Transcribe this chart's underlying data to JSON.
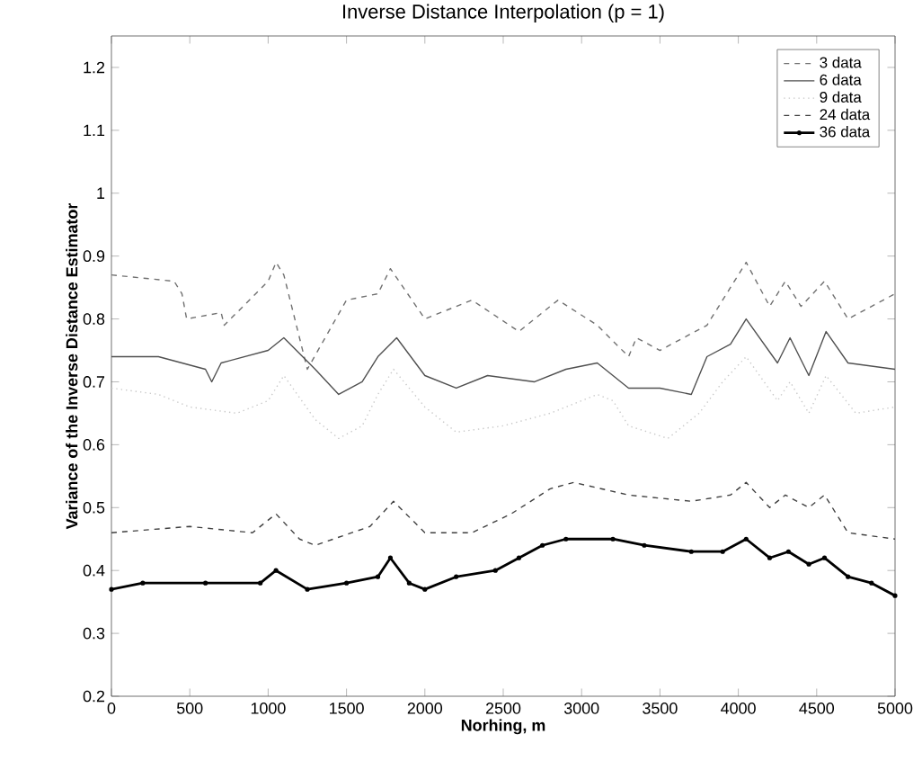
{
  "chart_data": {
    "type": "line",
    "title": "Inverse Distance Interpolation (p = 1)",
    "xlabel": "Norhing, m",
    "ylabel": "Variance of the Inverse Distance Estimator",
    "xlim": [
      0,
      5000
    ],
    "ylim": [
      0.2,
      1.25
    ],
    "xticks": [
      0,
      500,
      1000,
      1500,
      2000,
      2500,
      3000,
      3500,
      4000,
      4500,
      5000
    ],
    "yticks": [
      0.2,
      0.3,
      0.4,
      0.5,
      0.6,
      0.7,
      0.8,
      0.9,
      1,
      1.1,
      1.2
    ],
    "grid": false,
    "legend": "top right",
    "series": [
      {
        "name": "3 data",
        "color": "#707070",
        "line_style": "dashed",
        "marker": "none",
        "x": [
          0,
          400,
          450,
          480,
          700,
          720,
          760,
          1000,
          1050,
          1100,
          1250,
          1500,
          1700,
          1780,
          2000,
          2300,
          2600,
          2850,
          3100,
          3300,
          3350,
          3500,
          3800,
          4050,
          4200,
          4300,
          4400,
          4550,
          4700,
          5000
        ],
        "values": [
          0.87,
          0.86,
          0.84,
          0.8,
          0.81,
          0.79,
          0.8,
          0.86,
          0.89,
          0.87,
          0.72,
          0.83,
          0.84,
          0.88,
          0.8,
          0.83,
          0.78,
          0.83,
          0.79,
          0.74,
          0.77,
          0.75,
          0.79,
          0.89,
          0.82,
          0.86,
          0.82,
          0.86,
          0.8,
          0.84
        ]
      },
      {
        "name": "6 data",
        "color": "#505050",
        "line_style": "solid",
        "marker": "none",
        "x": [
          0,
          300,
          600,
          640,
          700,
          1000,
          1100,
          1300,
          1450,
          1600,
          1700,
          1820,
          2000,
          2200,
          2400,
          2700,
          2900,
          3100,
          3300,
          3500,
          3700,
          3800,
          3950,
          4050,
          4250,
          4330,
          4450,
          4560,
          4700,
          5000
        ],
        "values": [
          0.74,
          0.74,
          0.72,
          0.7,
          0.73,
          0.75,
          0.77,
          0.72,
          0.68,
          0.7,
          0.74,
          0.77,
          0.71,
          0.69,
          0.71,
          0.7,
          0.72,
          0.73,
          0.69,
          0.69,
          0.68,
          0.74,
          0.76,
          0.8,
          0.73,
          0.77,
          0.71,
          0.78,
          0.73,
          0.72
        ]
      },
      {
        "name": "9 data",
        "color": "#c8c8c8",
        "line_style": "dotted",
        "marker": "none",
        "x": [
          0,
          300,
          500,
          800,
          1000,
          1100,
          1300,
          1450,
          1600,
          1700,
          1800,
          2000,
          2200,
          2500,
          2800,
          3100,
          3200,
          3300,
          3550,
          3750,
          3900,
          4050,
          4250,
          4330,
          4450,
          4560,
          4750,
          5000
        ],
        "values": [
          0.69,
          0.68,
          0.66,
          0.65,
          0.67,
          0.71,
          0.64,
          0.61,
          0.63,
          0.68,
          0.72,
          0.66,
          0.62,
          0.63,
          0.65,
          0.68,
          0.67,
          0.63,
          0.61,
          0.65,
          0.7,
          0.74,
          0.67,
          0.7,
          0.65,
          0.71,
          0.65,
          0.66
        ]
      },
      {
        "name": "24 data",
        "color": "#404040",
        "line_style": "dashed",
        "marker": "none",
        "x": [
          0,
          500,
          900,
          1050,
          1200,
          1300,
          1650,
          1800,
          2000,
          2300,
          2550,
          2800,
          2950,
          3300,
          3700,
          3950,
          4050,
          4200,
          4300,
          4450,
          4550,
          4700,
          5000
        ],
        "values": [
          0.46,
          0.47,
          0.46,
          0.49,
          0.45,
          0.44,
          0.47,
          0.51,
          0.46,
          0.46,
          0.49,
          0.53,
          0.54,
          0.52,
          0.51,
          0.52,
          0.54,
          0.5,
          0.52,
          0.5,
          0.52,
          0.46,
          0.45
        ]
      },
      {
        "name": "36 data",
        "color": "#000000",
        "line_style": "solid",
        "marker": "circle",
        "x": [
          0,
          200,
          600,
          950,
          1050,
          1250,
          1500,
          1700,
          1780,
          1900,
          2000,
          2200,
          2450,
          2600,
          2750,
          2900,
          3200,
          3400,
          3700,
          3900,
          4050,
          4200,
          4320,
          4450,
          4550,
          4700,
          4850,
          5000
        ],
        "values": [
          0.37,
          0.38,
          0.38,
          0.38,
          0.4,
          0.37,
          0.38,
          0.39,
          0.42,
          0.38,
          0.37,
          0.39,
          0.4,
          0.42,
          0.44,
          0.45,
          0.45,
          0.44,
          0.43,
          0.43,
          0.45,
          0.42,
          0.43,
          0.41,
          0.42,
          0.39,
          0.38,
          0.36
        ]
      }
    ]
  }
}
